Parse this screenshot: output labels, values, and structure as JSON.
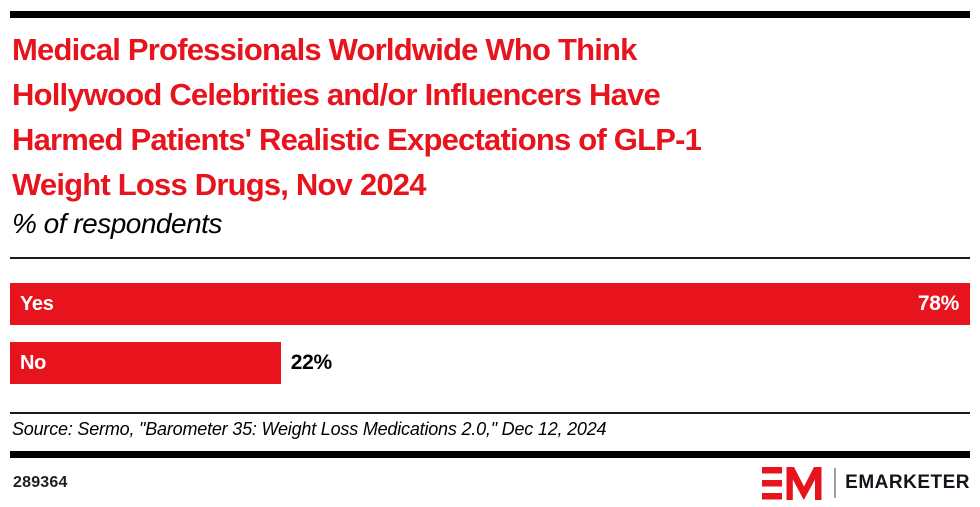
{
  "colors": {
    "accent_red": "#e7131d",
    "text_black": "#000000",
    "rule_black": "#000000",
    "bar_label_white": "#ffffff",
    "footer_text": "#1f1f23",
    "logo_divider": "#97a1a8",
    "logo_text": "#12161c"
  },
  "header": {
    "title_lines": [
      "Medical Professionals Worldwide Who Think",
      "Hollywood Celebrities and/or Influencers Have",
      "Harmed Patients' Realistic Expectations of GLP-1",
      "Weight Loss Drugs, Nov 2024"
    ],
    "subtitle": "% of respondents"
  },
  "chart_data": {
    "type": "bar",
    "orientation": "horizontal",
    "title": "Medical Professionals Worldwide Who Think Hollywood Celebrities and/or Influencers Have Harmed Patients' Realistic Expectations of GLP-1 Weight Loss Drugs, Nov 2024",
    "subtitle": "% of respondents",
    "categories": [
      "Yes",
      "No"
    ],
    "values": [
      78,
      22
    ],
    "value_labels": [
      "78%",
      "22%"
    ],
    "xlim": [
      0,
      78
    ],
    "grid": false,
    "bar_color": "#e7131d",
    "value_label_position": [
      "inside-right",
      "outside-right"
    ]
  },
  "footer": {
    "source": "Source: Sermo, \"Barometer 35: Weight Loss Medications 2.0,\" Dec 12, 2024",
    "chart_id": "289364",
    "brand": "EMARKETER"
  }
}
